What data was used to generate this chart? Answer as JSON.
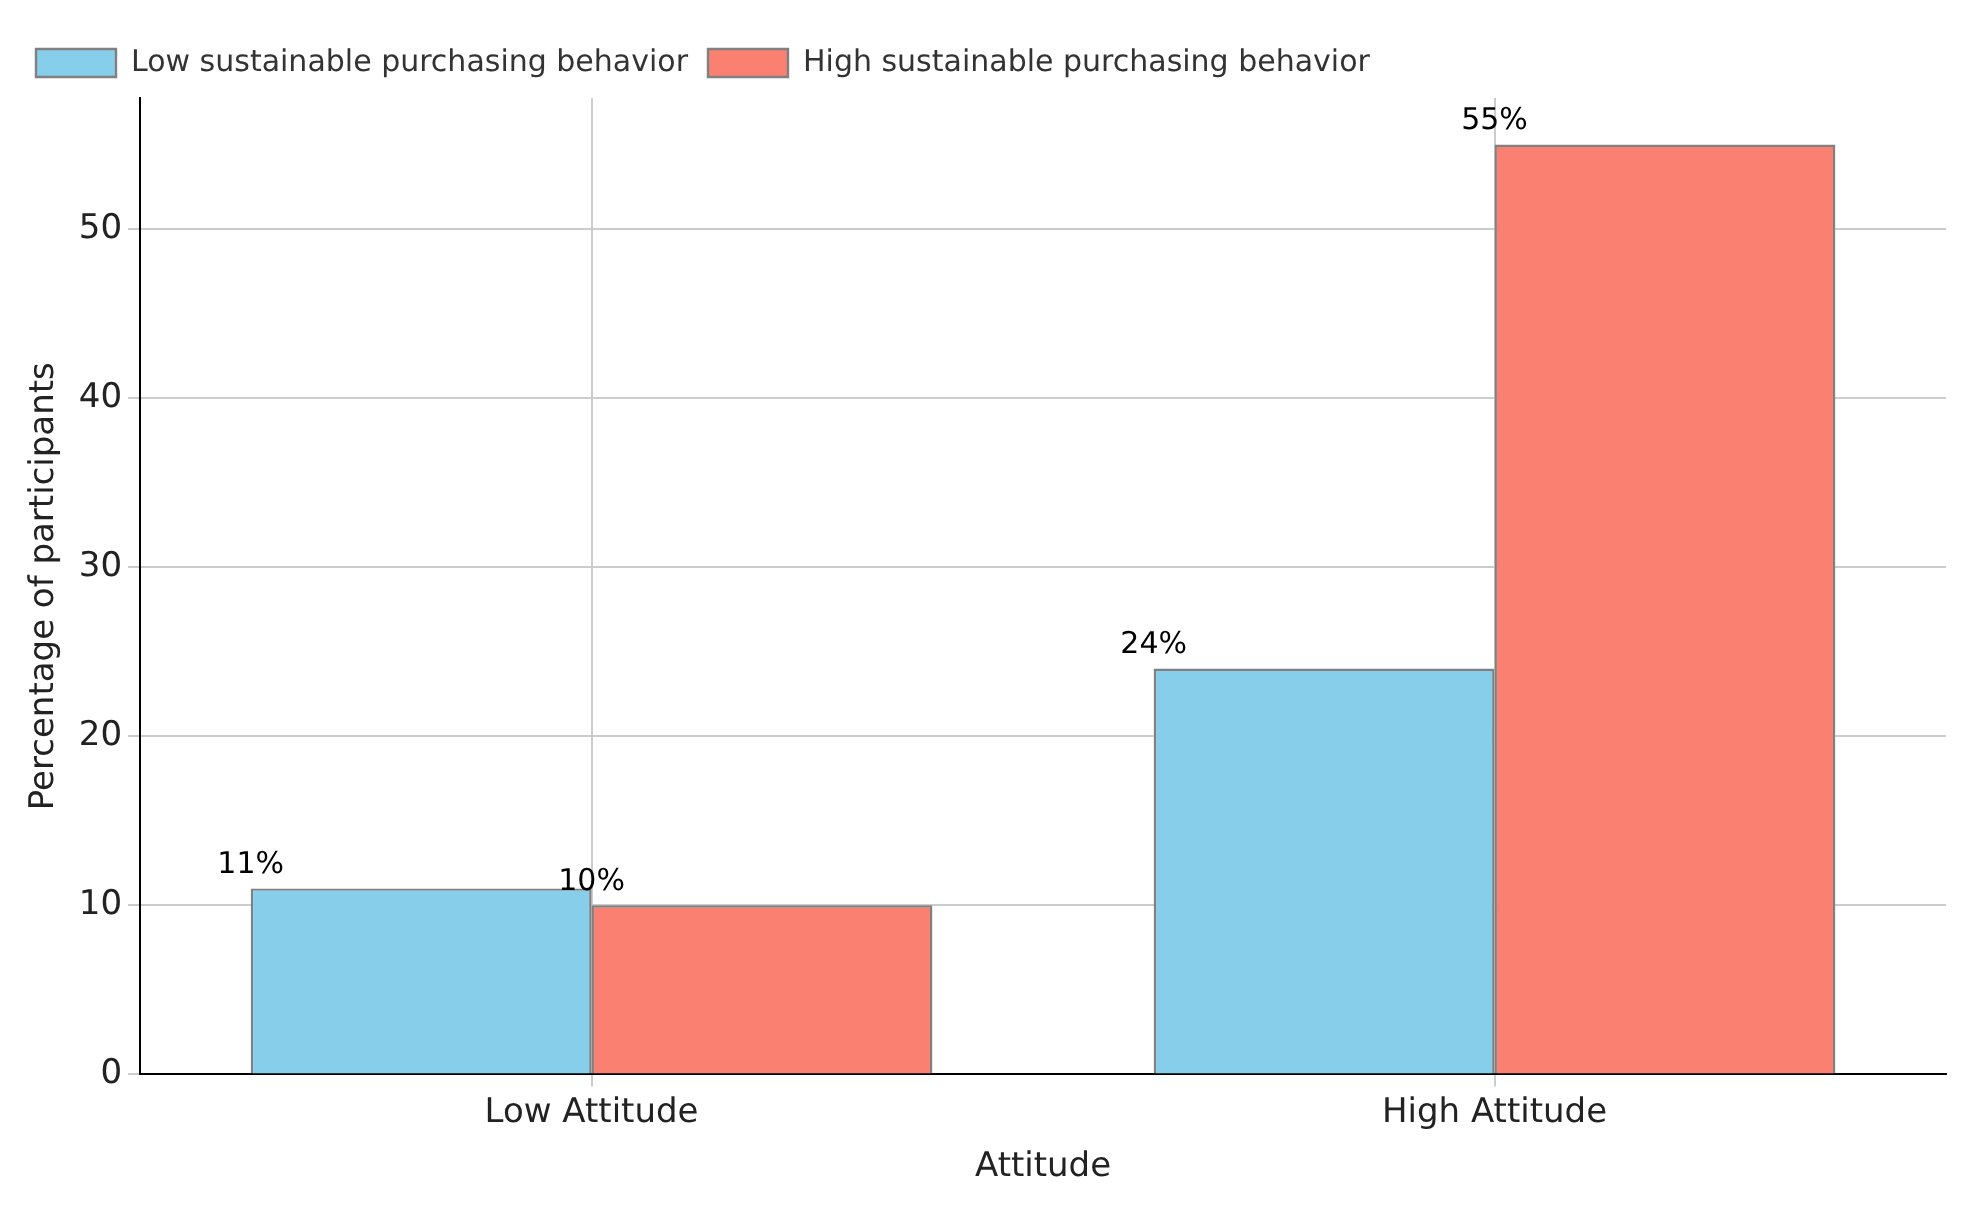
{
  "chart_data": {
    "type": "bar",
    "xlabel": "Attitude",
    "ylabel": "Percentage of participants",
    "categories": [
      "Low Attitude",
      "High Attitude"
    ],
    "series": [
      {
        "name": "Low sustainable purchasing behavior",
        "color": "#87ceeb",
        "values": [
          11,
          24
        ],
        "value_labels": [
          "11%",
          "24%"
        ]
      },
      {
        "name": "High sustainable purchasing behavior",
        "color": "#fa8072",
        "values": [
          10,
          55
        ],
        "value_labels": [
          "10%",
          "55%"
        ]
      }
    ],
    "ylim": [
      0,
      57.75
    ],
    "yticks": [
      0,
      10,
      20,
      30,
      40,
      50
    ],
    "grid": true,
    "legend": "top left"
  }
}
